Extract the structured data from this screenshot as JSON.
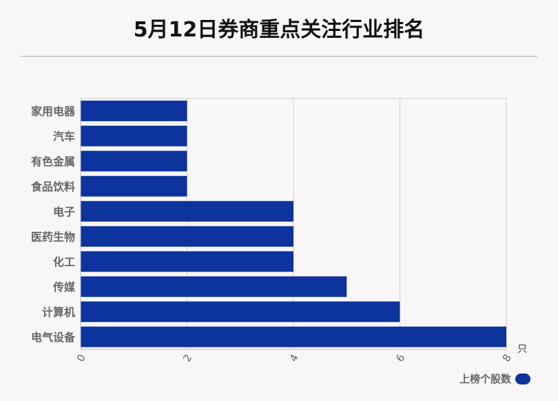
{
  "page": {
    "title": "5月12日券商重点关注行业排名"
  },
  "chart_data": {
    "type": "bar",
    "orientation": "horizontal",
    "title": "5月12日券商重点关注行业排名",
    "categories": [
      "家用电器",
      "汽车",
      "有色金属",
      "食品饮料",
      "电子",
      "医药生物",
      "化工",
      "传媒",
      "计算机",
      "电气设备"
    ],
    "series": [
      {
        "name": "上榜个股数",
        "values": [
          2,
          2,
          2,
          2,
          4,
          4,
          4,
          5,
          6,
          8
        ],
        "color": "#0d349c"
      }
    ],
    "xlim": [
      0,
      8
    ],
    "xticks": [
      "0",
      "2",
      "4",
      "6",
      "8"
    ],
    "xunit": "只",
    "grid": true,
    "legend_position": "bottom-right"
  }
}
